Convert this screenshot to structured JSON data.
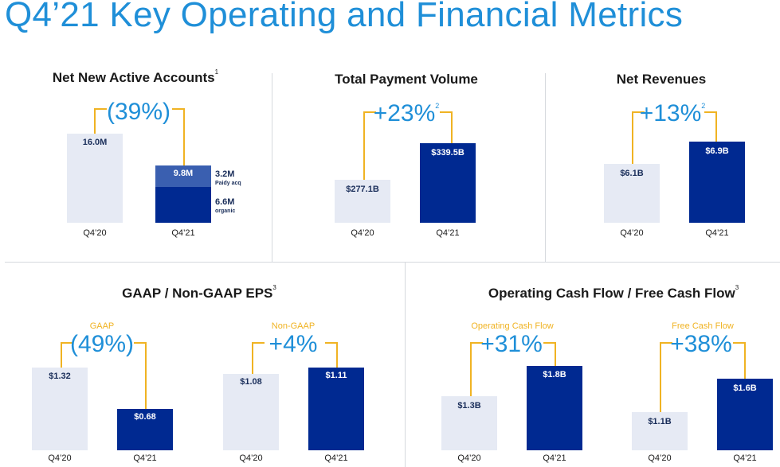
{
  "title": "Q4’21 Key Operating and Financial Metrics",
  "colors": {
    "title_blue": "#1f8fd8",
    "bracket_gold": "#f0b323",
    "bar_dark": "#002991",
    "bar_light": "#e6eaf4",
    "bar_mid": "#3a5fb0"
  },
  "panels": {
    "nna": {
      "title": "Net New Active Accounts",
      "footnote": "1",
      "change": "(39%)"
    },
    "tpv": {
      "title": "Total Payment Volume",
      "footnote": "2",
      "change": "+23%"
    },
    "rev": {
      "title": "Net Revenues",
      "footnote": "2",
      "change": "+13%"
    },
    "eps": {
      "title": "GAAP / Non-GAAP EPS",
      "footnote": "3",
      "gaap_label": "GAAP",
      "gaap_change": "(49%)",
      "nongaap_label": "Non-GAAP",
      "nongaap_change": "+4%"
    },
    "cf": {
      "title": "Operating Cash Flow / Free Cash Flow",
      "footnote": "3",
      "ocf_label": "Operating Cash Flow",
      "ocf_change": "+31%",
      "fcf_label": "Free Cash Flow",
      "fcf_change": "+38%"
    }
  },
  "chart_data": [
    {
      "type": "bar",
      "title": "Net New Active Accounts",
      "unit": "M",
      "categories": [
        "Q4’20",
        "Q4’21"
      ],
      "values": [
        16.0,
        9.8
      ],
      "labels": [
        "16.0M",
        "9.8M"
      ],
      "stack_q421": [
        {
          "name": "organic",
          "value": 6.6,
          "label": "6.6M"
        },
        {
          "name": "Paidy acq",
          "value": 3.2,
          "label": "3.2M"
        }
      ],
      "change": "(39%)"
    },
    {
      "type": "bar",
      "title": "Total Payment Volume",
      "unit": "$B",
      "categories": [
        "Q4’20",
        "Q4’21"
      ],
      "values": [
        277.1,
        339.5
      ],
      "labels": [
        "$277.1B",
        "$339.5B"
      ],
      "change": "+23%"
    },
    {
      "type": "bar",
      "title": "Net Revenues",
      "unit": "$B",
      "categories": [
        "Q4’20",
        "Q4’21"
      ],
      "values": [
        6.1,
        6.9
      ],
      "labels": [
        "$6.1B",
        "$6.9B"
      ],
      "change": "+13%"
    },
    {
      "type": "bar",
      "title": "GAAP",
      "unit": "$",
      "categories": [
        "Q4’20",
        "Q4’21"
      ],
      "values": [
        1.32,
        0.68
      ],
      "labels": [
        "$1.32",
        "$0.68"
      ],
      "change": "(49%)"
    },
    {
      "type": "bar",
      "title": "Non-GAAP",
      "unit": "$",
      "categories": [
        "Q4’20",
        "Q4’21"
      ],
      "values": [
        1.08,
        1.11
      ],
      "labels": [
        "$1.08",
        "$1.11"
      ],
      "change": "+4%"
    },
    {
      "type": "bar",
      "title": "Operating Cash Flow",
      "unit": "$B",
      "categories": [
        "Q4’20",
        "Q4’21"
      ],
      "values": [
        1.3,
        1.8
      ],
      "labels": [
        "$1.3B",
        "$1.8B"
      ],
      "change": "+31%"
    },
    {
      "type": "bar",
      "title": "Free Cash Flow",
      "unit": "$B",
      "categories": [
        "Q4’20",
        "Q4’21"
      ],
      "values": [
        1.1,
        1.6
      ],
      "labels": [
        "$1.1B",
        "$1.6B"
      ],
      "change": "+38%"
    }
  ]
}
